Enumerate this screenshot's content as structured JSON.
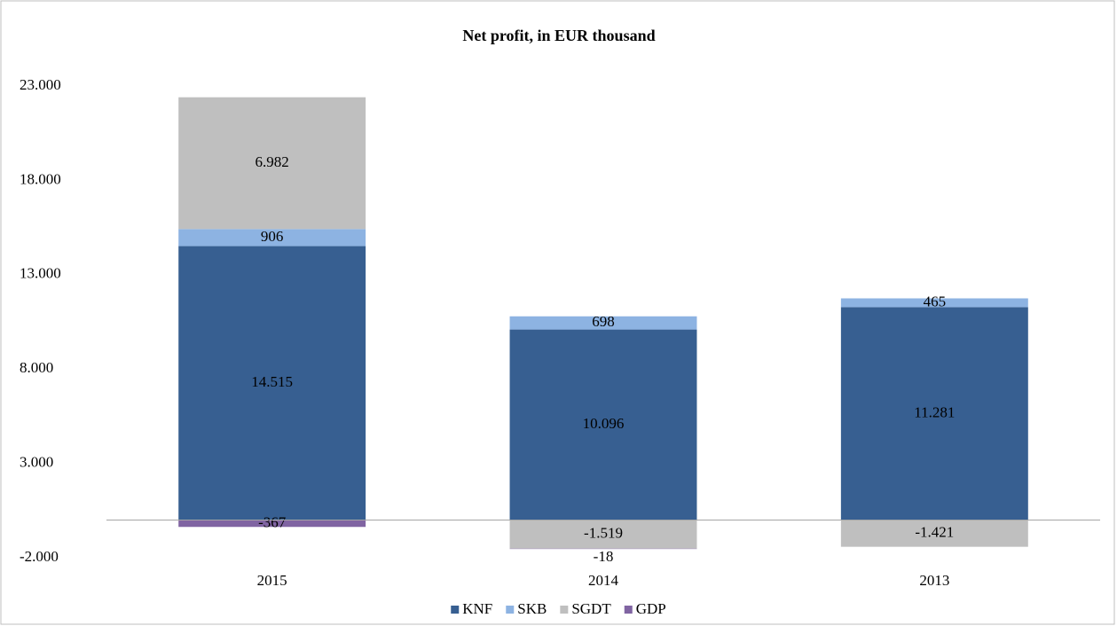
{
  "chart_data": {
    "type": "stacked_bar",
    "title": "Net profit, in EUR thousand",
    "categories": [
      "2015",
      "2014",
      "2013"
    ],
    "series": [
      {
        "name": "KNF",
        "color": "#375f91",
        "values": [
          14515,
          10096,
          11281
        ],
        "value_labels": [
          "14.515",
          "10.096",
          "11.281"
        ]
      },
      {
        "name": "SKB",
        "color": "#8db3e2",
        "values": [
          906,
          698,
          465
        ],
        "value_labels": [
          "906",
          "698",
          "465"
        ]
      },
      {
        "name": "SGDT",
        "color": "#bfbfbf",
        "values": [
          6982,
          -1519,
          -1421
        ],
        "value_labels": [
          "6.982",
          "-1.519",
          "-1.421"
        ]
      },
      {
        "name": "GDP",
        "color": "#8064a2",
        "values": [
          -367,
          -18,
          null
        ],
        "value_labels": [
          "-367",
          "-18",
          null
        ]
      }
    ],
    "ylim": [
      -2000,
      23000
    ],
    "yticks": [
      {
        "value": -2000,
        "label": "-2.000"
      },
      {
        "value": 3000,
        "label": "3.000"
      },
      {
        "value": 8000,
        "label": "8.000"
      },
      {
        "value": 13000,
        "label": "13.000"
      },
      {
        "value": 18000,
        "label": "18.000"
      },
      {
        "value": 23000,
        "label": "23.000"
      }
    ],
    "legend": "bottom"
  }
}
